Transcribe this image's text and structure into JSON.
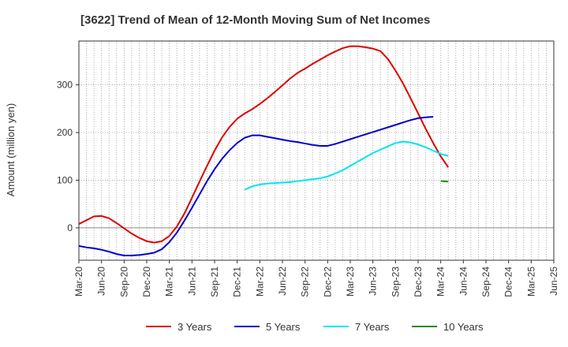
{
  "chart_data": {
    "type": "line",
    "title": "[3622]  Trend of Mean of 12-Month Moving Sum of Net Incomes",
    "xlabel": "",
    "ylabel": "Amount (million yen)",
    "ylim": [
      -68,
      392
    ],
    "yticks": [
      0,
      100,
      200,
      300
    ],
    "xticks": [
      "Mar-20",
      "Jun-20",
      "Sep-20",
      "Dec-20",
      "Mar-21",
      "Jun-21",
      "Sep-21",
      "Dec-21",
      "Mar-22",
      "Jun-22",
      "Sep-22",
      "Dec-22",
      "Mar-23",
      "Jun-23",
      "Sep-23",
      "Dec-23",
      "Mar-24",
      "Jun-24",
      "Sep-24",
      "Dec-24",
      "Mar-25",
      "Jun-25"
    ],
    "series": [
      {
        "name": "3 Years",
        "color": "#dd0000",
        "values": [
          8,
          16,
          24,
          25,
          20,
          10,
          -1,
          -12,
          -21,
          -28,
          -31,
          -28,
          -17,
          3,
          30,
          63,
          97,
          130,
          162,
          190,
          212,
          229,
          240,
          249,
          260,
          272,
          285,
          299,
          313,
          325,
          334,
          344,
          353,
          362,
          370,
          377,
          381,
          381,
          379,
          376,
          371,
          354,
          330,
          303,
          272,
          240,
          208,
          178,
          150,
          127
        ]
      },
      {
        "name": "5 Years",
        "color": "#0000cc",
        "values": [
          -38,
          -41,
          -43,
          -46,
          -50,
          -55,
          -58,
          -58,
          -57,
          -55,
          -52,
          -45,
          -30,
          -10,
          15,
          42,
          70,
          98,
          123,
          145,
          163,
          178,
          189,
          194,
          194,
          191,
          188,
          185,
          182,
          180,
          177,
          174,
          172,
          172,
          176,
          181,
          186,
          191,
          196,
          201,
          206,
          211,
          216,
          221,
          226,
          230,
          232,
          233
        ]
      },
      {
        "name": "7 Years",
        "color": "#00e5ee",
        "start_index": 22,
        "values": [
          80,
          87,
          91,
          93,
          94,
          95,
          96,
          98,
          100,
          102,
          104,
          108,
          114,
          121,
          130,
          139,
          148,
          157,
          164,
          171,
          178,
          181,
          179,
          175,
          169,
          162,
          155,
          151
        ]
      },
      {
        "name": "10 Years",
        "color": "#228b22",
        "start_index": 48,
        "values": [
          98,
          97
        ]
      }
    ],
    "legend_position": "bottom"
  }
}
